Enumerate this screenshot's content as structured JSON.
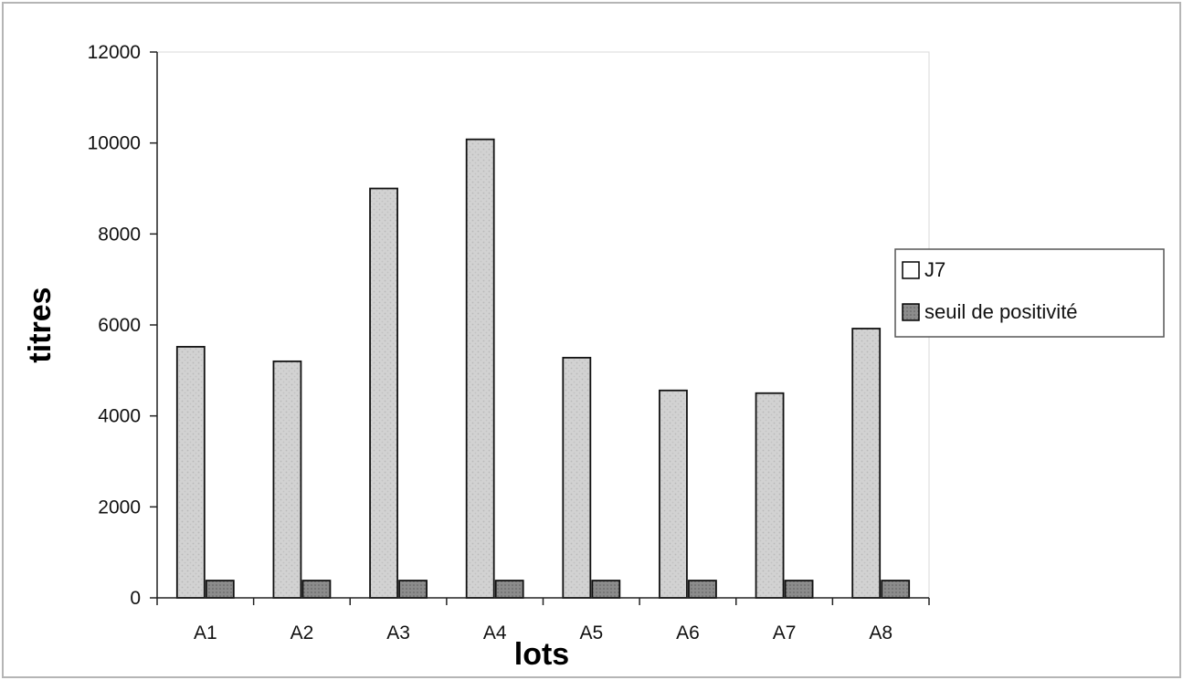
{
  "chart_data": {
    "type": "bar",
    "categories": [
      "A1",
      "A2",
      "A3",
      "A4",
      "A5",
      "A6",
      "A7",
      "A8"
    ],
    "series": [
      {
        "name": "J7",
        "values": [
          5520,
          5200,
          9000,
          10080,
          5280,
          4560,
          4500,
          5920
        ],
        "color": "#cfcfcf"
      },
      {
        "name": "seuil de positivité",
        "values": [
          380,
          380,
          380,
          380,
          380,
          380,
          380,
          380
        ],
        "color": "#8a8a8a"
      }
    ],
    "title": "",
    "xlabel": "lots",
    "ylabel": "titres",
    "ylim": [
      0,
      12000
    ],
    "yticks": [
      0,
      2000,
      4000,
      6000,
      8000,
      10000,
      12000
    ],
    "grid": false,
    "legend_position": "right"
  }
}
